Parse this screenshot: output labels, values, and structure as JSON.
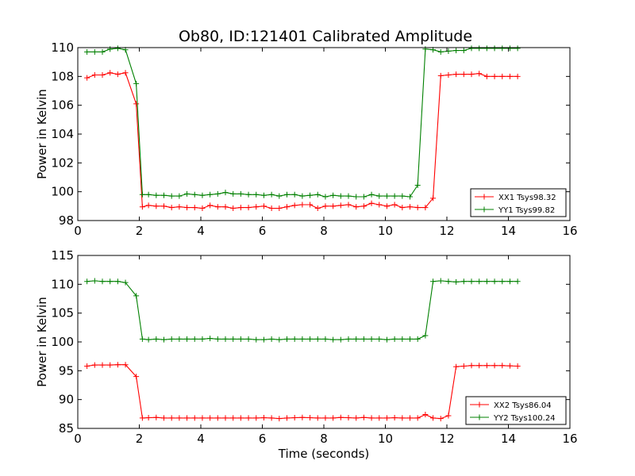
{
  "title": "Ob80, ID:121401 Calibrated Amplitude",
  "chart_data": [
    {
      "type": "line",
      "title": "Ob80, ID:121401 Calibrated Amplitude",
      "xlabel": "",
      "ylabel": "Power in Kelvin",
      "xlim": [
        0,
        16
      ],
      "ylim": [
        98,
        110
      ],
      "xticks": [
        "0",
        "2",
        "4",
        "6",
        "8",
        "10",
        "12",
        "14",
        "16"
      ],
      "yticks": [
        "98",
        "100",
        "102",
        "104",
        "106",
        "108",
        "110"
      ],
      "grid": false,
      "legend_position": "lower-right",
      "x": [
        0.3,
        0.55,
        0.8,
        1.05,
        1.3,
        1.55,
        1.9,
        2.1,
        2.3,
        2.55,
        2.8,
        3.05,
        3.3,
        3.55,
        3.8,
        4.05,
        4.3,
        4.55,
        4.8,
        5.05,
        5.3,
        5.55,
        5.8,
        6.05,
        6.3,
        6.55,
        6.8,
        7.05,
        7.3,
        7.55,
        7.8,
        8.05,
        8.3,
        8.55,
        8.8,
        9.05,
        9.3,
        9.55,
        9.8,
        10.05,
        10.3,
        10.55,
        10.8,
        11.05,
        11.3,
        11.55,
        11.8,
        12.05,
        12.3,
        12.55,
        12.8,
        13.05,
        13.3,
        13.55,
        13.8,
        14.05,
        14.3
      ],
      "series": [
        {
          "name": "XX1 Tsys98.32",
          "color": "#ff0000",
          "values": [
            107.9,
            108.1,
            108.1,
            108.25,
            108.15,
            108.25,
            106.1,
            98.95,
            99.05,
            99.0,
            99.0,
            98.9,
            98.95,
            98.9,
            98.9,
            98.85,
            99.05,
            98.95,
            98.95,
            98.85,
            98.9,
            98.9,
            98.95,
            99.0,
            98.85,
            98.85,
            98.95,
            99.05,
            99.1,
            99.1,
            98.85,
            99.0,
            99.0,
            99.05,
            99.1,
            98.95,
            99.0,
            99.2,
            99.1,
            99.0,
            99.1,
            98.9,
            98.95,
            98.9,
            98.9,
            99.55,
            108.05,
            108.1,
            108.15,
            108.15,
            108.15,
            108.2,
            108.0,
            108.0,
            108.0,
            108.0,
            108.0
          ]
        },
        {
          "name": "YY1 Tsys99.82",
          "color": "#008000",
          "values": [
            109.7,
            109.7,
            109.7,
            109.9,
            109.95,
            109.85,
            107.5,
            99.8,
            99.8,
            99.75,
            99.75,
            99.7,
            99.7,
            99.85,
            99.8,
            99.75,
            99.8,
            99.85,
            99.95,
            99.85,
            99.85,
            99.8,
            99.8,
            99.75,
            99.8,
            99.7,
            99.8,
            99.8,
            99.7,
            99.75,
            99.8,
            99.65,
            99.75,
            99.7,
            99.7,
            99.65,
            99.65,
            99.8,
            99.7,
            99.7,
            99.7,
            99.7,
            99.65,
            100.45,
            109.9,
            109.85,
            109.7,
            109.75,
            109.8,
            109.8,
            109.95,
            109.95,
            109.95,
            109.95,
            109.95,
            109.95,
            109.95
          ]
        }
      ]
    },
    {
      "type": "line",
      "title": "",
      "xlabel": "Time (seconds)",
      "ylabel": "Power in Kelvin",
      "xlim": [
        0,
        16
      ],
      "ylim": [
        85,
        115
      ],
      "xticks": [
        "0",
        "2",
        "4",
        "6",
        "8",
        "10",
        "12",
        "14",
        "16"
      ],
      "yticks": [
        "85",
        "90",
        "95",
        "100",
        "105",
        "110",
        "115"
      ],
      "grid": false,
      "legend_position": "lower-right",
      "x": [
        0.3,
        0.55,
        0.8,
        1.05,
        1.3,
        1.55,
        1.9,
        2.1,
        2.3,
        2.55,
        2.8,
        3.05,
        3.3,
        3.55,
        3.8,
        4.05,
        4.3,
        4.55,
        4.8,
        5.05,
        5.3,
        5.55,
        5.8,
        6.05,
        6.3,
        6.55,
        6.8,
        7.05,
        7.3,
        7.55,
        7.8,
        8.05,
        8.3,
        8.55,
        8.8,
        9.05,
        9.3,
        9.55,
        9.8,
        10.05,
        10.3,
        10.55,
        10.8,
        11.05,
        11.3,
        11.55,
        11.8,
        12.05,
        12.3,
        12.55,
        12.8,
        13.05,
        13.3,
        13.55,
        13.8,
        14.05,
        14.3
      ],
      "series": [
        {
          "name": "XX2 Tsys86.04",
          "color": "#ff0000",
          "values": [
            95.8,
            96.0,
            96.0,
            96.0,
            96.05,
            96.05,
            94.0,
            86.8,
            86.85,
            86.9,
            86.8,
            86.8,
            86.8,
            86.8,
            86.8,
            86.8,
            86.8,
            86.8,
            86.8,
            86.8,
            86.8,
            86.8,
            86.8,
            86.85,
            86.8,
            86.7,
            86.8,
            86.85,
            86.9,
            86.85,
            86.8,
            86.8,
            86.8,
            86.9,
            86.85,
            86.8,
            86.9,
            86.8,
            86.8,
            86.8,
            86.85,
            86.8,
            86.8,
            86.8,
            87.4,
            86.8,
            86.7,
            87.2,
            95.7,
            95.8,
            95.9,
            95.9,
            95.9,
            95.9,
            95.9,
            95.85,
            95.8
          ]
        },
        {
          "name": "YY2 Tsys100.24",
          "color": "#008000",
          "values": [
            110.5,
            110.6,
            110.5,
            110.5,
            110.5,
            110.3,
            108.0,
            100.5,
            100.4,
            100.5,
            100.4,
            100.5,
            100.5,
            100.5,
            100.5,
            100.5,
            100.6,
            100.5,
            100.5,
            100.5,
            100.5,
            100.5,
            100.4,
            100.4,
            100.5,
            100.4,
            100.5,
            100.5,
            100.5,
            100.5,
            100.5,
            100.5,
            100.4,
            100.4,
            100.5,
            100.5,
            100.5,
            100.5,
            100.5,
            100.4,
            100.5,
            100.5,
            100.5,
            100.5,
            101.1,
            110.5,
            110.6,
            110.5,
            110.4,
            110.5,
            110.5,
            110.5,
            110.5,
            110.5,
            110.5,
            110.5,
            110.5
          ]
        }
      ]
    }
  ]
}
